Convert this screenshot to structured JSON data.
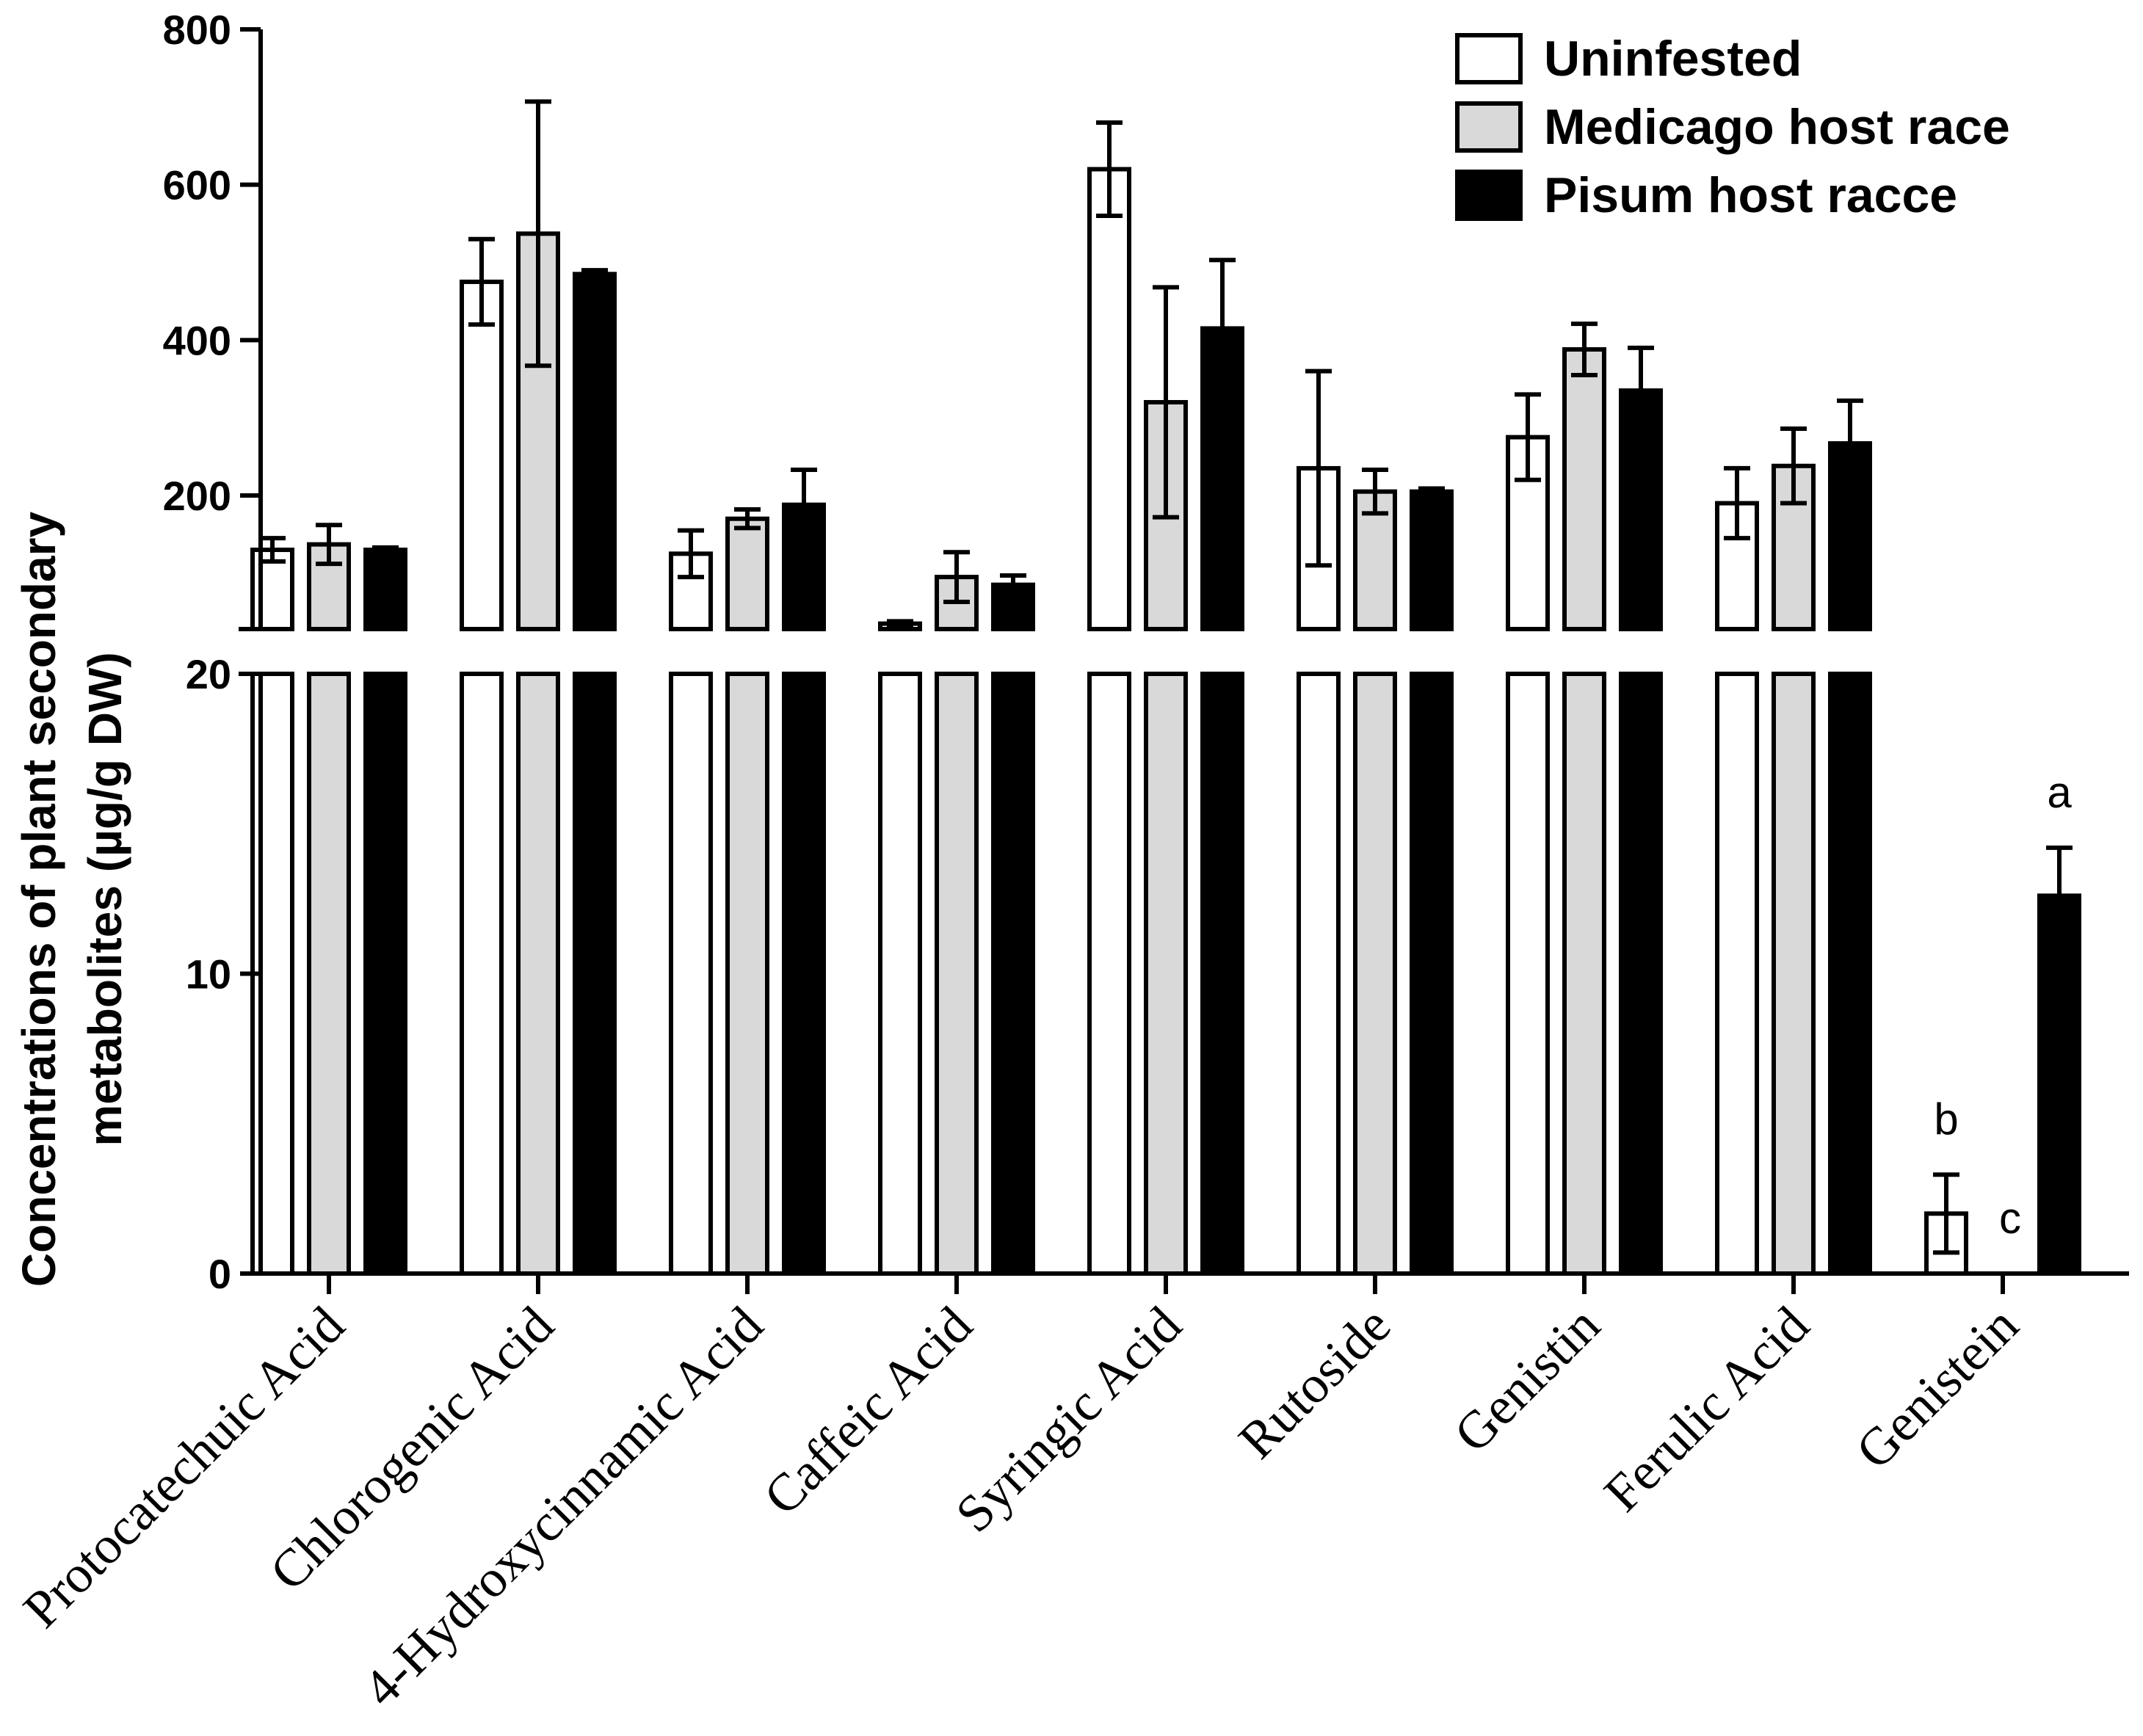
{
  "chart_data": {
    "type": "bar",
    "title": "",
    "xlabel": "",
    "ylabel_line1": "Concentrations of plant secondary",
    "ylabel_line2": "metabolites (µg/g DW)",
    "axis_break": true,
    "upper_ylim": [
      28,
      800
    ],
    "lower_ylim": [
      0,
      20
    ],
    "upper_ticks": [
      200,
      400,
      600,
      800
    ],
    "lower_ticks": [
      0,
      10,
      20
    ],
    "legend_position": "top-right",
    "categories": [
      "Protocatechuic Acid",
      "Chlorogenic Acid",
      "4-Hydroxycinnamic Acid",
      "Caffeic Acid",
      "Syringic Acid",
      "Rutoside",
      "Genistin",
      "Ferulic Acid",
      "Genistein"
    ],
    "series": [
      {
        "name": "Uninfested",
        "color": "#ffffff",
        "values": [
          130,
          475,
          125,
          35,
          620,
          235,
          275,
          190,
          2.0
        ],
        "errors": [
          15,
          55,
          30,
          3,
          60,
          125,
          55,
          45,
          1.3
        ]
      },
      {
        "name": "Medicago host race",
        "color": "#d9d9d9",
        "values": [
          137,
          537,
          170,
          95,
          320,
          205,
          388,
          238,
          0
        ],
        "errors": [
          25,
          170,
          12,
          32,
          148,
          28,
          33,
          48,
          0
        ]
      },
      {
        "name": "Pisum host racce",
        "color": "#000000",
        "values": [
          130,
          485,
          188,
          85,
          415,
          205,
          335,
          267,
          12.6
        ],
        "errors": [
          3,
          5,
          45,
          12,
          88,
          4,
          55,
          55,
          1.6
        ]
      }
    ],
    "annotations": [
      {
        "text": "b",
        "category": "Genistein",
        "series": "Uninfested"
      },
      {
        "text": "c",
        "category": "Genistein",
        "series": "Medicago host race"
      },
      {
        "text": "a",
        "category": "Genistein",
        "series": "Pisum host racce"
      }
    ]
  }
}
